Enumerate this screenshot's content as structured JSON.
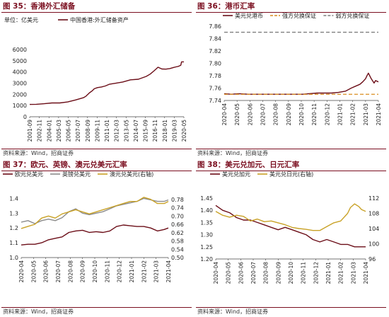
{
  "colors": {
    "brand": "#7a0e1f",
    "series_dark": "#6b0d17",
    "series_gold": "#c9a227",
    "series_gray": "#8c8c8c",
    "dash_orange": "#d98c1e",
    "dash_gray": "#7f7f7f"
  },
  "panels": [
    {
      "title": "图 35：香港外汇储备",
      "source": "资料来源：Wind，招商证券",
      "chart_data": {
        "type": "line",
        "title": "",
        "unit_label": "单位：亿美元",
        "ylim": [
          0,
          6000
        ],
        "yticks": [
          0,
          1000,
          2000,
          3000,
          4000,
          5000,
          6000
        ],
        "x_tick_labels": [
          "2001-09",
          "2002-11",
          "2004-01",
          "2005-03",
          "2006-05",
          "2007-07",
          "2008-09",
          "2009-11",
          "2011-01",
          "2012-03",
          "2013-05",
          "2014-07",
          "2015-09",
          "2016-11",
          "2018-01",
          "2019-03",
          "2020-05"
        ],
        "x_range": [
          2001.67,
          2021.3
        ],
        "legend_position": "top-center",
        "series": [
          {
            "name": "中国香港:外汇储备资产",
            "color": "#6b0d17",
            "x": [
              2001.67,
              2002.5,
              2003.5,
              2004.5,
              2005.5,
              2006.5,
              2007.5,
              2008.0,
              2008.5,
              2008.8,
              2009.0,
              2009.3,
              2009.6,
              2009.9,
              2010.3,
              2010.8,
              2011.3,
              2011.8,
              2012.5,
              2013.5,
              2014.5,
              2015.5,
              2016.5,
              2017.0,
              2017.5,
              2018.0,
              2018.5,
              2019.0,
              2019.5,
              2020.0,
              2020.3,
              2020.6,
              2020.9,
              2021.0,
              2021.3
            ],
            "y": [
              1100,
              1110,
              1160,
              1230,
              1230,
              1320,
              1500,
              1600,
              1700,
              1820,
              1950,
              2150,
              2300,
              2500,
              2600,
              2660,
              2750,
              2900,
              2980,
              3100,
              3300,
              3350,
              3600,
              3800,
              4100,
              4420,
              4260,
              4250,
              4300,
              4400,
              4450,
              4500,
              4600,
              4900,
              4900
            ]
          }
        ]
      }
    },
    {
      "title": "图 36：港币汇率",
      "source": "资料来源：Wind，招商证券",
      "chart_data": {
        "type": "line",
        "title": "",
        "ylim": [
          7.74,
          7.87
        ],
        "yticks": [
          7.74,
          7.76,
          7.78,
          7.8,
          7.82,
          7.84,
          7.86
        ],
        "x_tick_labels": [
          "2020-04",
          "2020-05",
          "2020-06",
          "2020-07",
          "2020-08",
          "2020-09",
          "2020-10",
          "2020-11",
          "2020-12",
          "2021-01",
          "2021-02",
          "2021-03",
          "2021-04"
        ],
        "x_range": [
          2020.25,
          2021.33
        ],
        "legend_position": "top",
        "series": [
          {
            "name": "美元兑港币",
            "color": "#6b0d17",
            "x": [
              2020.25,
              2020.3,
              2020.35,
              2020.42,
              2020.5,
              2020.6,
              2020.7,
              2020.8,
              2020.9,
              2021.0,
              2021.05,
              2021.1,
              2021.14,
              2021.17,
              2021.2,
              2021.22,
              2021.24,
              2021.25,
              2021.26,
              2021.28,
              2021.3,
              2021.31,
              2021.33
            ],
            "y": [
              7.751,
              7.75,
              7.751,
              7.75,
              7.75,
              7.75,
              7.75,
              7.75,
              7.752,
              7.752,
              7.753,
              7.755,
              7.76,
              7.763,
              7.766,
              7.77,
              7.775,
              7.78,
              7.784,
              7.775,
              7.768,
              7.772,
              7.77
            ]
          },
          {
            "name": "强方兑换保证",
            "color": "#d98c1e",
            "dashed": true,
            "constant": 7.75
          },
          {
            "name": "弱方兑换保证",
            "color": "#7f7f7f",
            "dashed": true,
            "constant": 7.85
          }
        ]
      }
    },
    {
      "title": "图 37：欧元、英镑、澳元兑美元汇率",
      "source": "资料来源：Wind，招商证券",
      "chart_data": {
        "type": "line",
        "title": "",
        "ylim": [
          1.0,
          1.45
        ],
        "yticks": [
          1.0,
          1.1,
          1.2,
          1.3,
          1.4
        ],
        "y2lim": [
          0.5,
          0.82
        ],
        "y2ticks": [
          0.5,
          0.54,
          0.58,
          0.62,
          0.66,
          0.7,
          0.74,
          0.78
        ],
        "x_tick_labels": [
          "2020-04",
          "2020-05",
          "2020-06",
          "2020-07",
          "2020-08",
          "2020-09",
          "2020-10",
          "2020-11",
          "2020-12",
          "2021-01",
          "2021-02",
          "2021-03",
          "2021-04"
        ],
        "x_range": [
          2020.25,
          2021.33
        ],
        "legend_position": "top",
        "series": [
          {
            "name": "欧元兑美元",
            "color": "#6b0d17",
            "axis": "left",
            "x": [
              2020.25,
              2020.3,
              2020.35,
              2020.4,
              2020.45,
              2020.5,
              2020.55,
              2020.6,
              2020.65,
              2020.7,
              2020.75,
              2020.8,
              2020.85,
              2020.9,
              2020.95,
              2021.0,
              2021.05,
              2021.1,
              2021.15,
              2021.2,
              2021.25,
              2021.3,
              2021.33
            ],
            "y": [
              1.085,
              1.09,
              1.09,
              1.1,
              1.12,
              1.13,
              1.14,
              1.17,
              1.18,
              1.185,
              1.17,
              1.175,
              1.17,
              1.18,
              1.21,
              1.22,
              1.215,
              1.21,
              1.21,
              1.2,
              1.18,
              1.19,
              1.2
            ]
          },
          {
            "name": "英镑兑美元",
            "color": "#8c8c8c",
            "axis": "left",
            "x": [
              2020.25,
              2020.3,
              2020.35,
              2020.4,
              2020.45,
              2020.5,
              2020.55,
              2020.6,
              2020.65,
              2020.7,
              2020.75,
              2020.8,
              2020.85,
              2020.9,
              2020.95,
              2021.0,
              2021.05,
              2021.1,
              2021.15,
              2021.2,
              2021.25,
              2021.3,
              2021.33
            ],
            "y": [
              1.24,
              1.25,
              1.23,
              1.25,
              1.26,
              1.25,
              1.27,
              1.31,
              1.33,
              1.3,
              1.29,
              1.3,
              1.31,
              1.33,
              1.35,
              1.36,
              1.37,
              1.38,
              1.4,
              1.39,
              1.38,
              1.38,
              1.39
            ]
          },
          {
            "name": "澳元兑美元(右轴)",
            "color": "#c9a227",
            "axis": "right",
            "x": [
              2020.25,
              2020.3,
              2020.35,
              2020.4,
              2020.45,
              2020.5,
              2020.55,
              2020.6,
              2020.65,
              2020.7,
              2020.75,
              2020.8,
              2020.85,
              2020.9,
              2020.95,
              2021.0,
              2021.05,
              2021.1,
              2021.15,
              2021.2,
              2021.25,
              2021.3,
              2021.33
            ],
            "y": [
              0.64,
              0.65,
              0.66,
              0.69,
              0.7,
              0.69,
              0.71,
              0.72,
              0.73,
              0.72,
              0.71,
              0.72,
              0.73,
              0.74,
              0.75,
              0.76,
              0.77,
              0.77,
              0.79,
              0.78,
              0.76,
              0.76,
              0.77
            ]
          }
        ]
      }
    },
    {
      "title": "图 38：美元兑加元、日元汇率",
      "source": "资料来源：Wind，招商证券",
      "chart_data": {
        "type": "line",
        "title": "",
        "ylim": [
          1.2,
          1.45
        ],
        "yticks": [
          1.2,
          1.25,
          1.3,
          1.35,
          1.4,
          1.45
        ],
        "y2lim": [
          96,
          112
        ],
        "y2ticks": [
          96,
          100,
          104,
          108,
          112
        ],
        "x_tick_labels": [
          "2020-04",
          "2020-05",
          "2020-06",
          "2020-07",
          "2020-08",
          "2020-09",
          "2020-10",
          "2020-11",
          "2020-12",
          "2021-01",
          "2021-02",
          "2021-03",
          "2021-04"
        ],
        "x_range": [
          2020.25,
          2021.33
        ],
        "legend_position": "top",
        "series": [
          {
            "name": "美元兑加元",
            "color": "#6b0d17",
            "axis": "left",
            "x": [
              2020.25,
              2020.3,
              2020.35,
              2020.4,
              2020.45,
              2020.5,
              2020.55,
              2020.6,
              2020.65,
              2020.7,
              2020.75,
              2020.8,
              2020.85,
              2020.9,
              2020.95,
              2021.0,
              2021.05,
              2021.1,
              2021.15,
              2021.2,
              2021.25,
              2021.3,
              2021.33
            ],
            "y": [
              1.42,
              1.4,
              1.39,
              1.37,
              1.36,
              1.36,
              1.35,
              1.34,
              1.33,
              1.32,
              1.33,
              1.32,
              1.31,
              1.3,
              1.28,
              1.27,
              1.28,
              1.27,
              1.26,
              1.26,
              1.25,
              1.25,
              1.25
            ]
          },
          {
            "name": "美元兑日元(右轴)",
            "color": "#c9a227",
            "axis": "right",
            "x": [
              2020.25,
              2020.3,
              2020.35,
              2020.4,
              2020.45,
              2020.5,
              2020.55,
              2020.6,
              2020.65,
              2020.7,
              2020.75,
              2020.8,
              2020.85,
              2020.9,
              2020.95,
              2021.0,
              2021.05,
              2021.1,
              2021.15,
              2021.2,
              2021.22,
              2021.25,
              2021.28,
              2021.3,
              2021.33
            ],
            "y": [
              108.5,
              107.5,
              107.0,
              107.5,
              107.2,
              106.0,
              106.5,
              105.8,
              106.0,
              105.5,
              105.0,
              104.3,
              104.0,
              103.8,
              103.5,
              103.5,
              104.5,
              105.5,
              106.0,
              108.0,
              109.5,
              110.5,
              109.8,
              109.0,
              108.5
            ]
          }
        ]
      }
    }
  ]
}
